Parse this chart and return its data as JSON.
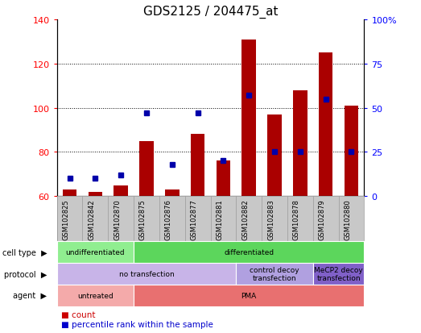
{
  "title": "GDS2125 / 204475_at",
  "samples": [
    "GSM102825",
    "GSM102842",
    "GSM102870",
    "GSM102875",
    "GSM102876",
    "GSM102877",
    "GSM102881",
    "GSM102882",
    "GSM102883",
    "GSM102878",
    "GSM102879",
    "GSM102880"
  ],
  "counts": [
    63,
    62,
    65,
    85,
    63,
    88,
    76,
    131,
    97,
    108,
    125,
    101
  ],
  "percentile": [
    10,
    10,
    12,
    47,
    18,
    47,
    20,
    57,
    25,
    25,
    55,
    25
  ],
  "ymin": 60,
  "ymax": 140,
  "y_ticks": [
    60,
    80,
    100,
    120,
    140
  ],
  "y2_ticks": [
    0,
    25,
    50,
    75,
    100
  ],
  "cell_type_groups": [
    {
      "label": "undifferentiated",
      "start": 0,
      "end": 3,
      "color": "#90ee90"
    },
    {
      "label": "differentiated",
      "start": 3,
      "end": 12,
      "color": "#5cd65c"
    }
  ],
  "protocol_groups": [
    {
      "label": "no transfection",
      "start": 0,
      "end": 7,
      "color": "#c8b4e8"
    },
    {
      "label": "control decoy\ntransfection",
      "start": 7,
      "end": 10,
      "color": "#b0a0e0"
    },
    {
      "label": "MeCP2 decoy\ntransfection",
      "start": 10,
      "end": 12,
      "color": "#8060c8"
    }
  ],
  "agent_groups": [
    {
      "label": "untreated",
      "start": 0,
      "end": 3,
      "color": "#f4aaaa"
    },
    {
      "label": "PMA",
      "start": 3,
      "end": 12,
      "color": "#e87070"
    }
  ],
  "bar_color": "#aa0000",
  "dot_color": "#0000aa",
  "sample_bg_color": "#c8c8c8",
  "title_fontsize": 11,
  "legend_bar_color": "#cc0000",
  "legend_dot_color": "#0000cc"
}
